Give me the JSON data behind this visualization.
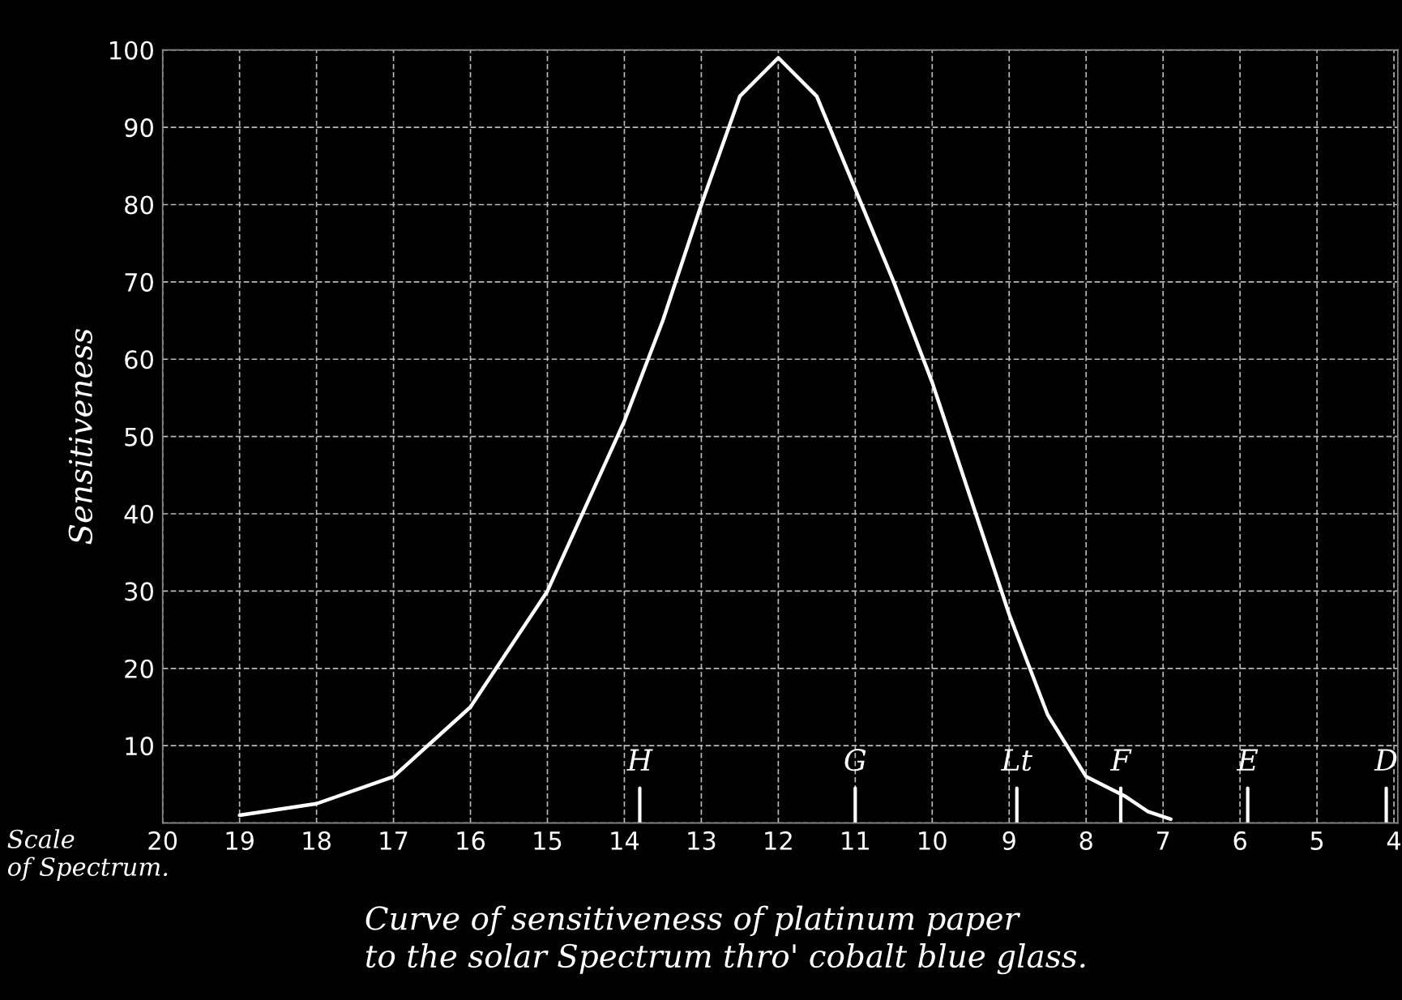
{
  "chart_data": {
    "type": "line",
    "title": "Curve of sensitiveness of platinum paper\nto the solar Spectrum thro' cobalt blue glass.",
    "xlabel": "Scale\nof Spectrum.",
    "ylabel": "Sensitiveness",
    "x": [
      19,
      18,
      17,
      16,
      15,
      14,
      13.5,
      13,
      12.5,
      12,
      11.5,
      11,
      10.5,
      10,
      9.5,
      9,
      8.5,
      8,
      7.5,
      7.2,
      6.9
    ],
    "series": [
      {
        "color": "#ffffff",
        "values": [
          1,
          2.5,
          6,
          15,
          30,
          52,
          65,
          80,
          94,
          99,
          94,
          82,
          70,
          57,
          42,
          27,
          14,
          6,
          3.5,
          1.5,
          0.5
        ]
      }
    ],
    "xlim": [
      20,
      3.95
    ],
    "xticks": [
      20,
      19,
      18,
      17,
      16,
      15,
      14,
      13,
      12,
      11,
      10,
      9,
      8,
      7,
      6,
      5,
      4
    ],
    "ylim": [
      0,
      100
    ],
    "yticks": [
      {
        "value": 0,
        "label": null
      },
      10,
      20,
      30,
      40,
      50,
      60,
      70,
      80,
      90,
      100
    ],
    "ref_lines": [
      {
        "axis": "x",
        "value": 13.8,
        "label": "H"
      },
      {
        "axis": "x",
        "value": 11.0,
        "label": "G"
      },
      {
        "axis": "x",
        "value": 8.9,
        "label": "Lt"
      },
      {
        "axis": "x",
        "value": 7.55,
        "label": "F"
      },
      {
        "axis": "x",
        "value": 5.9,
        "label": "E"
      },
      {
        "axis": "x",
        "value": 4.1,
        "label": "D"
      }
    ],
    "grid": true,
    "marker": "none",
    "line_style": "solid"
  }
}
